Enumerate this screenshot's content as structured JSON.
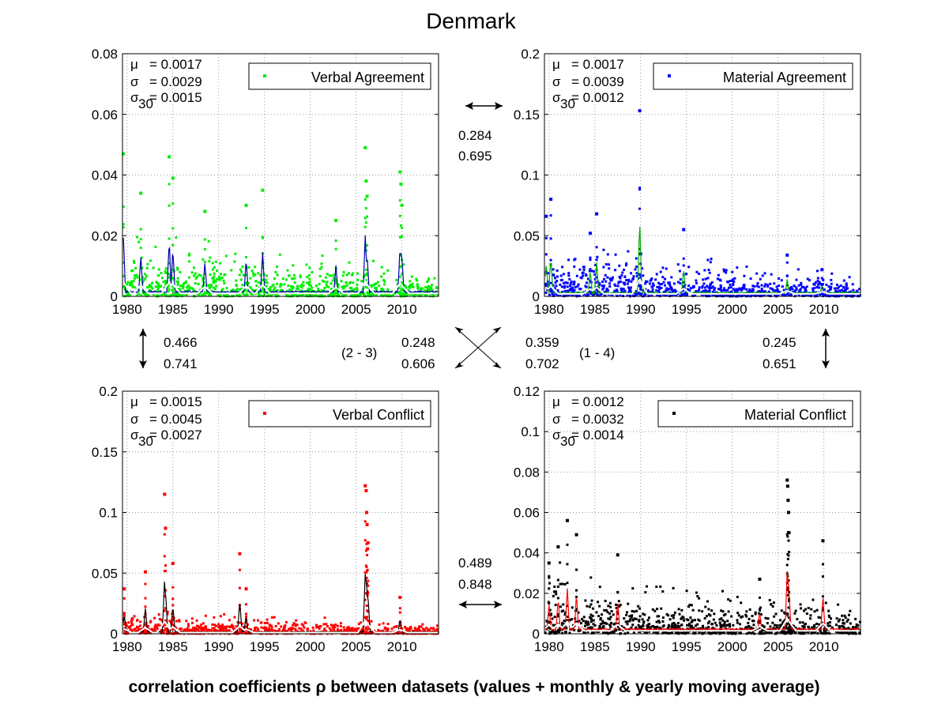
{
  "title": "Denmark",
  "caption": "correlation coefficients ρ between datasets (values + monthly & yearly moving average)",
  "colors": {
    "green": "#00ee00",
    "blue": "#0000ff",
    "red": "#ff0000",
    "black": "#000000",
    "darkblue": "#00008b",
    "grid": "#b0b0b0"
  },
  "chart_data": [
    {
      "type": "scatter",
      "legend": "Verbal Agreement",
      "legend_position": "top-right",
      "color": "#00ee00",
      "avg_color": "#0000aa",
      "ylim": [
        0,
        0.08
      ],
      "yticks": [
        0,
        0.02,
        0.04,
        0.06,
        0.08
      ],
      "ytick_labels": [
        "0",
        "0.02",
        "0.04",
        "0.06",
        "0.08"
      ],
      "xlim": [
        1979.5,
        2014
      ],
      "xticks": [
        1980,
        1985,
        1990,
        1995,
        2000,
        2005,
        2010
      ],
      "xtick_labels": [
        "1980",
        "1985",
        "1990",
        "1995",
        "2000",
        "2005",
        "2010"
      ],
      "grid": true,
      "stats": {
        "mu_label": "μ",
        "mu": "= 0.0017",
        "sigma_label": "σ",
        "sigma": "= 0.0029",
        "sigma30_label": "σ",
        "sigma30_sub": "30",
        "sigma30": "= 0.0015"
      },
      "spikes": [
        [
          1979.6,
          0.047
        ],
        [
          1981.5,
          0.034
        ],
        [
          1984.6,
          0.046
        ],
        [
          1985.0,
          0.039
        ],
        [
          1988.5,
          0.028
        ],
        [
          1993.0,
          0.03
        ],
        [
          1994.8,
          0.035
        ],
        [
          2002.8,
          0.025
        ],
        [
          2006.0,
          0.049
        ],
        [
          2006.1,
          0.038
        ],
        [
          2006.2,
          0.033
        ],
        [
          2009.8,
          0.041
        ],
        [
          2009.9,
          0.037
        ],
        [
          2010.0,
          0.03
        ]
      ],
      "base_level": 0.004
    },
    {
      "type": "scatter",
      "legend": "Material Agreement",
      "legend_position": "top-right",
      "color": "#0000ff",
      "avg_color": "#00aa00",
      "ylim": [
        0,
        0.2
      ],
      "yticks": [
        0,
        0.05,
        0.1,
        0.15,
        0.2
      ],
      "ytick_labels": [
        "0",
        "0.05",
        "0.1",
        "0.15",
        "0.2"
      ],
      "xlim": [
        1979.5,
        2014
      ],
      "xticks": [
        1980,
        1985,
        1990,
        1995,
        2000,
        2005,
        2010
      ],
      "xtick_labels": [
        "1980",
        "1985",
        "1990",
        "1995",
        "2000",
        "2005",
        "2010"
      ],
      "grid": true,
      "stats": {
        "mu_label": "μ",
        "mu": "= 0.0017",
        "sigma_label": "σ",
        "sigma": "= 0.0039",
        "sigma30_label": "σ",
        "sigma30_sub": "30",
        "sigma30": "= 0.0012"
      },
      "spikes": [
        [
          1979.7,
          0.066
        ],
        [
          1980.2,
          0.08
        ],
        [
          1985.2,
          0.068
        ],
        [
          1984.5,
          0.052
        ],
        [
          1989.9,
          0.153
        ],
        [
          1994.7,
          0.055
        ],
        [
          1990.0,
          0.035
        ],
        [
          2006.0,
          0.034
        ],
        [
          2009.8,
          0.022
        ]
      ],
      "base_level": 0.008
    },
    {
      "type": "scatter",
      "legend": "Verbal Conflict",
      "legend_position": "top-right",
      "color": "#ff0000",
      "avg_color": "#000000",
      "ylim": [
        0,
        0.2
      ],
      "yticks": [
        0,
        0.05,
        0.1,
        0.15,
        0.2
      ],
      "ytick_labels": [
        "0",
        "0.05",
        "0.1",
        "0.15",
        "0.2"
      ],
      "xlim": [
        1979.5,
        2014
      ],
      "xticks": [
        1980,
        1985,
        1990,
        1995,
        2000,
        2005,
        2010
      ],
      "xtick_labels": [
        "1980",
        "1985",
        "1990",
        "1995",
        "2000",
        "2005",
        "2010"
      ],
      "grid": true,
      "stats": {
        "mu_label": "μ",
        "mu": "= 0.0015",
        "sigma_label": "σ",
        "sigma": "= 0.0045",
        "sigma30_label": "σ",
        "sigma30_sub": "30",
        "sigma30": "= 0.0027"
      },
      "spikes": [
        [
          1979.7,
          0.037
        ],
        [
          1982.0,
          0.051
        ],
        [
          1984.1,
          0.115
        ],
        [
          1984.2,
          0.087
        ],
        [
          1985.0,
          0.058
        ],
        [
          1992.3,
          0.066
        ],
        [
          1993.0,
          0.037
        ],
        [
          2006.0,
          0.122
        ],
        [
          2006.1,
          0.118
        ],
        [
          2006.15,
          0.1
        ],
        [
          2006.2,
          0.09
        ],
        [
          2006.3,
          0.075
        ],
        [
          2006.25,
          0.07
        ],
        [
          2009.8,
          0.03
        ]
      ],
      "base_level": 0.004
    },
    {
      "type": "scatter",
      "legend": "Material Conflict",
      "legend_position": "top-right",
      "color": "#000000",
      "avg_color": "#ff0000",
      "ylim": [
        0,
        0.12
      ],
      "yticks": [
        0,
        0.02,
        0.04,
        0.06,
        0.08,
        0.1,
        0.12
      ],
      "ytick_labels": [
        "0",
        "0.02",
        "0.04",
        "0.06",
        "0.08",
        "0.1",
        "0.12"
      ],
      "xlim": [
        1979.5,
        2014
      ],
      "xticks": [
        1980,
        1985,
        1990,
        1995,
        2000,
        2005,
        2010
      ],
      "xtick_labels": [
        "1980",
        "1985",
        "1990",
        "1995",
        "2000",
        "2005",
        "2010"
      ],
      "grid": true,
      "stats": {
        "mu_label": "μ",
        "mu": "= 0.0012",
        "sigma_label": "σ",
        "sigma": "= 0.0032",
        "sigma30_label": "σ",
        "sigma30_sub": "30",
        "sigma30": "= 0.0014"
      },
      "spikes": [
        [
          1980.0,
          0.035
        ],
        [
          1981.0,
          0.043
        ],
        [
          1982.0,
          0.056
        ],
        [
          1983.0,
          0.049
        ],
        [
          1987.5,
          0.039
        ],
        [
          2003.0,
          0.027
        ],
        [
          2006.0,
          0.076
        ],
        [
          2006.05,
          0.073
        ],
        [
          2006.1,
          0.066
        ],
        [
          2006.15,
          0.06
        ],
        [
          2006.2,
          0.05
        ],
        [
          2009.9,
          0.046
        ]
      ],
      "base_level": 0.006
    }
  ],
  "correlations": {
    "top": [
      "0.284",
      "0.695"
    ],
    "left": [
      "0.466",
      "0.741"
    ],
    "right": [
      "0.245",
      "0.651"
    ],
    "bottom": [
      "0.489",
      "0.848"
    ],
    "diag_2_3_label": "(2 - 3)",
    "diag_2_3": [
      "0.248",
      "0.606"
    ],
    "diag_1_4": [
      "0.359",
      "0.702"
    ],
    "diag_1_4_label": "(1 - 4)"
  }
}
